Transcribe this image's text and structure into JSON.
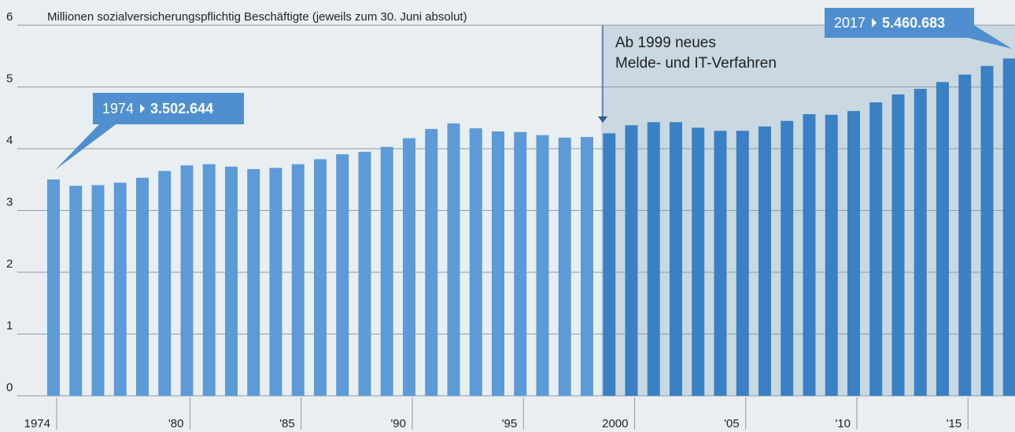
{
  "chart_data": {
    "type": "bar",
    "title": "Millionen sozialversicherungspflichtig Beschäftigte (jeweils zum 30. Juni absolut)",
    "categories": [
      "1974",
      null,
      null,
      null,
      null,
      null,
      "'80",
      null,
      null,
      null,
      null,
      "'85",
      null,
      null,
      null,
      null,
      "'90",
      null,
      null,
      null,
      null,
      "'95",
      null,
      null,
      null,
      null,
      "2000",
      null,
      null,
      null,
      null,
      "'05",
      null,
      null,
      null,
      null,
      "'10",
      null,
      null,
      null,
      null,
      "'15",
      null,
      null
    ],
    "values": [
      3.502644,
      3.4,
      3.41,
      3.45,
      3.53,
      3.64,
      3.73,
      3.75,
      3.71,
      3.67,
      3.69,
      3.75,
      3.83,
      3.91,
      3.95,
      4.03,
      4.17,
      4.32,
      4.41,
      4.33,
      4.28,
      4.27,
      4.22,
      4.18,
      4.19,
      4.25,
      4.38,
      4.43,
      4.43,
      4.34,
      4.29,
      4.29,
      4.36,
      4.45,
      4.56,
      4.55,
      4.61,
      4.75,
      4.88,
      4.97,
      5.08,
      5.2,
      5.34,
      5.460683
    ],
    "colors": [
      "#5c9bd7",
      "#5c9bd7",
      "#5c9bd7",
      "#5c9bd7",
      "#5c9bd7",
      "#5c9bd7",
      "#5c9bd7",
      "#5c9bd7",
      "#5c9bd7",
      "#5c9bd7",
      "#5c9bd7",
      "#5c9bd7",
      "#5c9bd7",
      "#5c9bd7",
      "#5c9bd7",
      "#5c9bd7",
      "#5c9bd7",
      "#5c9bd7",
      "#5c9bd7",
      "#5c9bd7",
      "#5c9bd7",
      "#5c9bd7",
      "#5c9bd7",
      "#5c9bd7",
      "#5c9bd7",
      "#3a80c4",
      "#3a80c4",
      "#3a80c4",
      "#3a80c4",
      "#3a80c4",
      "#3a80c4",
      "#3a80c4",
      "#3a80c4",
      "#3a80c4",
      "#3a80c4",
      "#3a80c4",
      "#3a80c4",
      "#3a80c4",
      "#3a80c4",
      "#3a80c4",
      "#3a80c4",
      "#3a80c4",
      "#3a80c4",
      "#3a80c4"
    ],
    "ylim": [
      0,
      6
    ],
    "yticks": [
      0,
      1,
      2,
      3,
      4,
      5,
      6
    ],
    "grid": true,
    "annotation": [
      "Ab 1999 neues",
      "Melde- und IT-Verfahren"
    ],
    "callouts": [
      {
        "year": "1974",
        "value_label": "3.502.644"
      },
      {
        "year": "2017",
        "value_label": "5.460.683"
      }
    ]
  }
}
